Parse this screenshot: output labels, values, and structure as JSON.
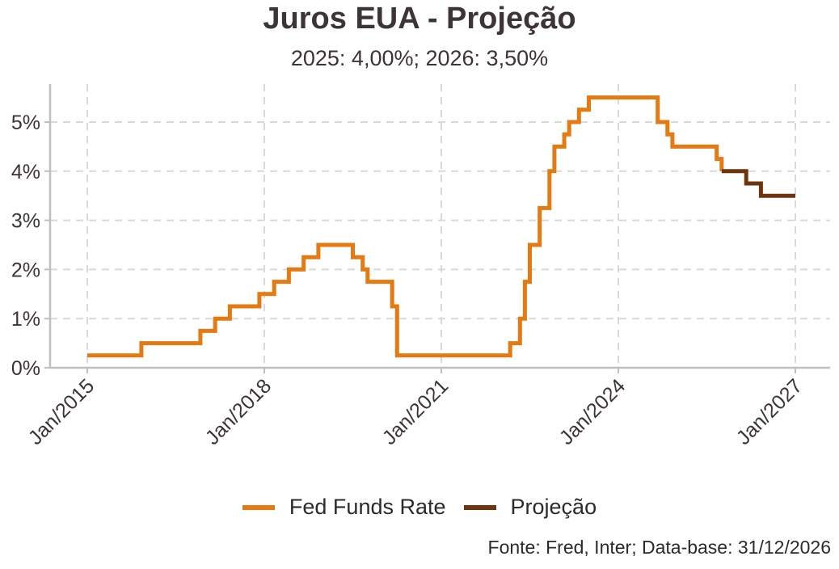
{
  "chart_data": {
    "type": "line",
    "title": "Juros EUA - Projeção",
    "subtitle": "2025: 4,00%; 2026: 3,50%",
    "xlabel": "",
    "ylabel": "",
    "x_ticks": [
      "Jan/2015",
      "Jan/2018",
      "Jan/2021",
      "Jan/2024",
      "Jan/2027"
    ],
    "y_ticks": [
      "0%",
      "1%",
      "2%",
      "3%",
      "4%",
      "5%"
    ],
    "xlim": [
      "2015-01",
      "2027-01"
    ],
    "ylim": [
      0,
      5.75
    ],
    "grid": true,
    "legend_position": "bottom",
    "caption": "Fonte: Fred, Inter; Data-base: 31/12/2026",
    "series": [
      {
        "name": "Fed Funds Rate",
        "color": "#e57a12",
        "step": true,
        "points": [
          [
            "2015-01",
            0.25
          ],
          [
            "2015-12",
            0.5
          ],
          [
            "2016-12",
            0.75
          ],
          [
            "2017-03",
            1.0
          ],
          [
            "2017-06",
            1.25
          ],
          [
            "2017-12",
            1.5
          ],
          [
            "2018-03",
            1.75
          ],
          [
            "2018-06",
            2.0
          ],
          [
            "2018-09",
            2.25
          ],
          [
            "2018-12",
            2.5
          ],
          [
            "2019-07",
            2.25
          ],
          [
            "2019-09",
            2.0
          ],
          [
            "2019-10",
            1.75
          ],
          [
            "2020-03",
            1.25
          ],
          [
            "2020-04",
            0.25
          ],
          [
            "2022-03",
            0.5
          ],
          [
            "2022-05",
            1.0
          ],
          [
            "2022-06",
            1.75
          ],
          [
            "2022-07",
            2.5
          ],
          [
            "2022-09",
            3.25
          ],
          [
            "2022-11",
            4.0
          ],
          [
            "2022-12",
            4.5
          ],
          [
            "2023-02",
            4.75
          ],
          [
            "2023-03",
            5.0
          ],
          [
            "2023-05",
            5.25
          ],
          [
            "2023-07",
            5.5
          ],
          [
            "2024-09",
            5.0
          ],
          [
            "2024-11",
            4.75
          ],
          [
            "2024-12",
            4.5
          ],
          [
            "2025-09",
            4.25
          ],
          [
            "2025-10",
            4.0
          ]
        ]
      },
      {
        "name": "Projeção",
        "color": "#6e340d",
        "step": true,
        "points": [
          [
            "2025-10",
            4.0
          ],
          [
            "2026-03",
            3.75
          ],
          [
            "2026-06",
            3.5
          ],
          [
            "2027-01",
            3.5
          ]
        ]
      }
    ]
  }
}
